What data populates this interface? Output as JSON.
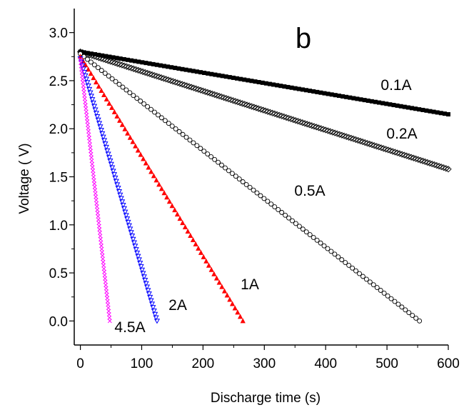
{
  "chart_data": {
    "type": "scatter",
    "panel_label": "b",
    "xlabel": "Discharge time (s)",
    "ylabel": "Voltage  ( V)",
    "xlim": [
      -10,
      600
    ],
    "ylim": [
      -0.25,
      3.25
    ],
    "xticks": [
      "0",
      "100",
      "200",
      "300",
      "400",
      "500",
      "600"
    ],
    "yticks": [
      "0.0",
      "0.5",
      "1.0",
      "1.5",
      "2.0",
      "2.5",
      "3.0"
    ],
    "series": [
      {
        "name": "0.1A",
        "color": "#000000",
        "marker": "filled-square",
        "x": [
          0,
          600
        ],
        "y": [
          2.8,
          2.15
        ]
      },
      {
        "name": "0.2A",
        "color": "#000000",
        "marker": "hatched-diamond",
        "x": [
          0,
          600
        ],
        "y": [
          2.8,
          1.58
        ]
      },
      {
        "name": "0.5A",
        "color": "#000000",
        "marker": "open-circle",
        "x": [
          0,
          553
        ],
        "y": [
          2.78,
          0.0
        ]
      },
      {
        "name": "1A",
        "color": "#ff0000",
        "marker": "filled-triangle",
        "x": [
          0,
          265
        ],
        "y": [
          2.75,
          0.0
        ]
      },
      {
        "name": "2A",
        "color": "#0000ff",
        "marker": "open-triangle-down",
        "x": [
          0,
          125
        ],
        "y": [
          2.73,
          0.0
        ]
      },
      {
        "name": "4.5A",
        "color": "#ff00ff",
        "marker": "cross",
        "x": [
          0,
          48
        ],
        "y": [
          2.72,
          0.0
        ]
      }
    ]
  }
}
